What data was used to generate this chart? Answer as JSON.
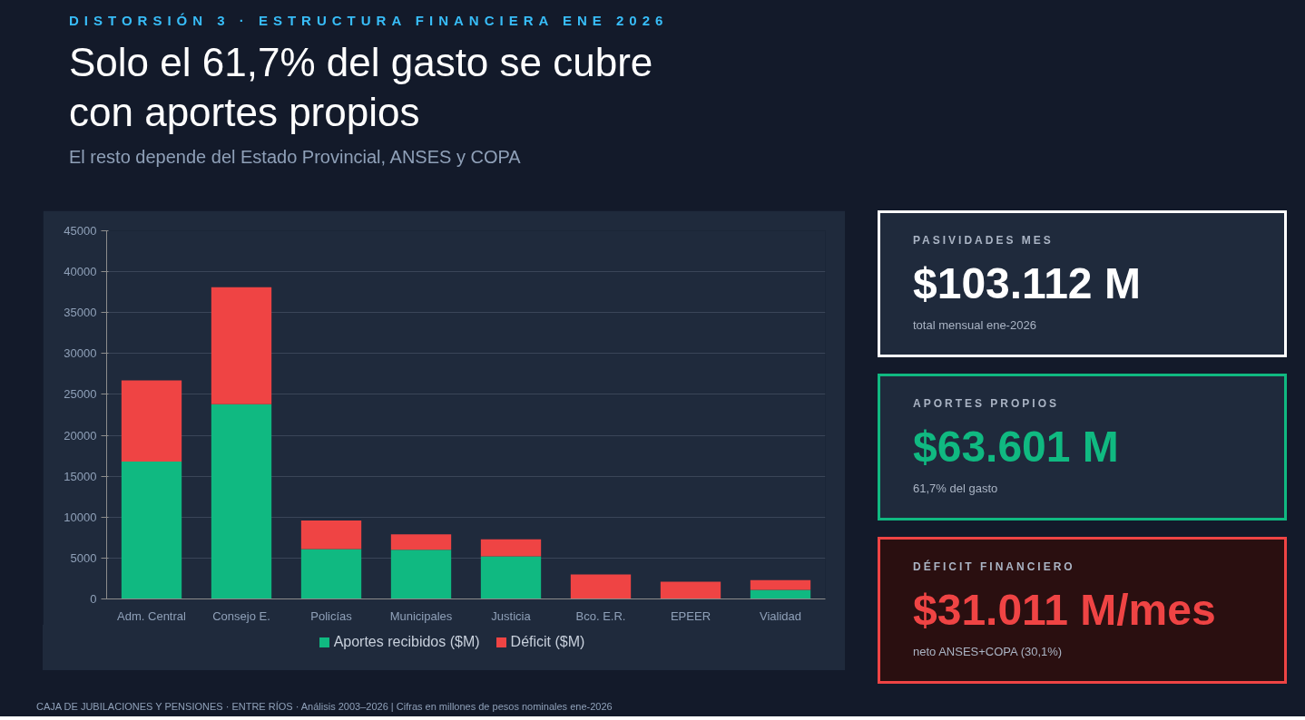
{
  "chart_data": [
    {
      "type": "bar",
      "title": "Solo el 61,7% del gasto se cubre con aportes propios",
      "subtitle": "El resto depende del Estado Provincial, ANSES y COPA",
      "annotations": [
        "DISTORSIÓN 3 · ESTRUCTURA FINANCIERA ENE 2026",
        "CAJA DE JUBILACIONES Y PENSIONES · ENTRE RÍOS · Análisis 2003–2026 | Cifras en millones de pesos nominales ene-2026"
      ],
      "categories": [
        "Adm. Central",
        "Consejo E.",
        "Policías",
        "Municipales",
        "Justicia",
        "Bco. E.R.",
        "EPEER",
        "Vialidad"
      ],
      "stacked": true,
      "series": [
        {
          "name": "Aportes recibidos ($M)",
          "color": "#10b981",
          "values": [
            16800,
            23800,
            6100,
            6000,
            5200,
            0,
            0,
            1100
          ]
        },
        {
          "name": "Déficit ($M)",
          "color": "#ef4444",
          "values": [
            9900,
            14300,
            3500,
            1900,
            2100,
            3000,
            2100,
            1200
          ]
        }
      ],
      "ylim": [
        0,
        45000
      ],
      "yticks": [
        0,
        5000,
        10000,
        15000,
        20000,
        25000,
        30000,
        35000,
        40000,
        45000
      ],
      "grid": "y",
      "legend": "bottom"
    },
    {
      "type": "other",
      "title": "PASIVIDADES MES",
      "color": "#ffffff",
      "annotations": [
        "$103.112 M",
        "total mensual ene-2026"
      ]
    },
    {
      "type": "other",
      "title": "APORTES PROPIOS",
      "color": "#10b981",
      "annotations": [
        "$63.601 M",
        "61,7% del gasto"
      ]
    },
    {
      "type": "other",
      "title": "DÉFICIT FINANCIERO",
      "color": "#ef4444",
      "annotations": [
        "$31.011 M/mes",
        "neto ANSES+COPA  (30,1%)"
      ]
    }
  ]
}
